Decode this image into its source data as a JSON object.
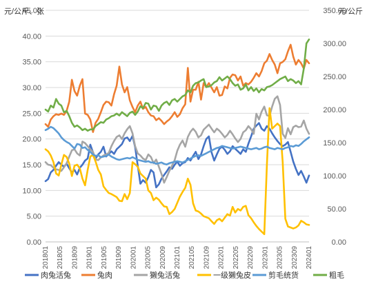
{
  "chart_data": {
    "type": "line",
    "title": "",
    "left_unit": "元/公斤、张",
    "right_unit": "元/公斤",
    "y_left": {
      "min": 0,
      "max": 45,
      "ticks": [
        "0.00",
        "5.00",
        "10.00",
        "15.00",
        "20.00",
        "25.00",
        "30.00",
        "35.00",
        "40.00",
        "45.00"
      ]
    },
    "y_right": {
      "min": 0,
      "max": 350,
      "ticks": [
        "0.00",
        "50.00",
        "100.00",
        "150.00",
        "200.00",
        "250.00",
        "300.00",
        "350.00"
      ]
    },
    "x_range": [
      0,
      100
    ],
    "x_tick_labels": [
      "201801",
      "201805",
      "201809",
      "201901",
      "201905",
      "201909",
      "202001",
      "202005",
      "202009",
      "202101",
      "202105",
      "202109",
      "202201",
      "202205",
      "202209",
      "202301",
      "202305",
      "202309",
      "202401"
    ],
    "legend_position": "bottom",
    "grid": true,
    "series": [
      {
        "name": "肉兔活兔",
        "axis": "left",
        "color": "#4472C4",
        "values": [
          11.8,
          12.2,
          13.5,
          14.0,
          14.8,
          15.5,
          15.0,
          14.6,
          15.2,
          14.3,
          13.5,
          14.0,
          13.1,
          14.4,
          15.0,
          15.8,
          16.2,
          18.9,
          17.4,
          16.2,
          17.0,
          17.5,
          18.5,
          16.6,
          17.1,
          17.6,
          17.1,
          18.0,
          18.5,
          19.0,
          20.1,
          20.3,
          19.6,
          20.6,
          18.4,
          14.8,
          11.3,
          12.0,
          11.5,
          12.6,
          14.0,
          13.5,
          10.6,
          11.2,
          12.3,
          13.0,
          13.7,
          14.5,
          14.2,
          15.0,
          15.6,
          14.8,
          15.3,
          15.5,
          16.3,
          15.8,
          16.7,
          17.5,
          16.1,
          17.0,
          18.6,
          20.0,
          20.5,
          17.4,
          15.8,
          17.0,
          18.1,
          18.5,
          17.9,
          17.1,
          17.6,
          18.6,
          18.1,
          17.6,
          17.1,
          18.0,
          17.5,
          19.1,
          20.5,
          22.0,
          22.6,
          23.1,
          22.0,
          21.6,
          22.5,
          22.0,
          21.1,
          20.3,
          19.6,
          19.0,
          18.6,
          18.9,
          19.4,
          17.5,
          15.6,
          14.2,
          13.0,
          13.8,
          12.7,
          11.5,
          12.9
        ]
      },
      {
        "name": "兔肉",
        "axis": "right",
        "color": "#ED7D31",
        "values": [
          178,
          174,
          185,
          190,
          193,
          192,
          194,
          192,
          198,
          212,
          245,
          228,
          221,
          236,
          246,
          194,
          192,
          185,
          166,
          180,
          186,
          196,
          207,
          212,
          211,
          206,
          223,
          236,
          265,
          238,
          226,
          234,
          214,
          204,
          196,
          206,
          212,
          201,
          204,
          196,
          191,
          190,
          184,
          187,
          183,
          178,
          182,
          185,
          190,
          196,
          189,
          193,
          202,
          208,
          263,
          212,
          230,
          230,
          242,
          215,
          240,
          234,
          240,
          233,
          226,
          234,
          221,
          222,
          235,
          232,
          248,
          253,
          252,
          244,
          250,
          236,
          240,
          238,
          242,
          248,
          255,
          250,
          258,
          270,
          274,
          284,
          275,
          268,
          255,
          270,
          272,
          276,
          288,
          298,
          280,
          268,
          275,
          270,
          262,
          275,
          270
        ]
      },
      {
        "name": "獭兔活兔",
        "axis": "left",
        "color": "#A5A5A5",
        "values": [
          15.5,
          15.0,
          14.9,
          14.4,
          14.1,
          14.0,
          13.8,
          14.5,
          15.3,
          16.6,
          17.8,
          18.0,
          17.2,
          16.8,
          19.5,
          19.2,
          18.6,
          18.0,
          17.5,
          16.0,
          15.9,
          16.4,
          16.8,
          17.0,
          17.3,
          18.6,
          19.6,
          20.4,
          20.7,
          20.0,
          21.1,
          21.9,
          22.5,
          21.1,
          18.6,
          17.2,
          16.8,
          16.2,
          15.9,
          17.0,
          16.5,
          15.3,
          16.0,
          14.6,
          13.2,
          11.5,
          12.6,
          13.8,
          14.8,
          15.9,
          17.7,
          18.9,
          19.7,
          18.5,
          20.4,
          21.4,
          22.0,
          21.4,
          20.3,
          20.7,
          21.8,
          22.3,
          22.8,
          22.0,
          21.3,
          22.0,
          21.6,
          21.0,
          20.3,
          20.8,
          21.6,
          20.9,
          20.1,
          19.4,
          20.0,
          21.3,
          21.7,
          22.5,
          21.9,
          21.0,
          24.9,
          23.8,
          25.3,
          26.3,
          24.6,
          24.5,
          26.3,
          27.8,
          28.3,
          26.6,
          21.0,
          20.2,
          22.1,
          20.9,
          22.3,
          22.6,
          22.3,
          22.4,
          23.6,
          22.0,
          21.0
        ]
      },
      {
        "name": "一级獭兔皮",
        "axis": "left",
        "color": "#FFC000",
        "values": [
          18.0,
          17.6,
          16.8,
          15.5,
          13.3,
          12.9,
          15.0,
          16.9,
          16.5,
          15.2,
          12.8,
          14.8,
          15.0,
          14.3,
          12.3,
          11.0,
          14.0,
          16.6,
          16.9,
          15.6,
          14.0,
          13.1,
          10.8,
          10.1,
          9.5,
          9.3,
          9.0,
          8.7,
          8.0,
          7.9,
          9.3,
          8.3,
          9.5,
          15.5,
          15.1,
          14.6,
          13.3,
          12.8,
          12.3,
          10.0,
          9.5,
          8.1,
          8.6,
          8.2,
          7.5,
          6.9,
          6.8,
          5.4,
          5.8,
          6.4,
          7.6,
          8.8,
          9.7,
          10.5,
          12.3,
          11.1,
          7.5,
          6.1,
          5.9,
          5.5,
          5.0,
          4.8,
          4.6,
          4.0,
          3.5,
          4.2,
          4.5,
          4.0,
          4.7,
          5.4,
          5.1,
          6.8,
          5.7,
          6.4,
          6.1,
          6.8,
          7.0,
          5.2,
          4.6,
          3.8,
          3.1,
          2.5,
          2.0,
          1.5,
          15.0,
          26.0,
          22.0,
          22.5,
          23.0,
          22.5,
          15.5,
          4.5,
          3.0,
          2.8,
          2.6,
          2.8,
          3.2,
          4.1,
          3.8,
          3.4,
          3.3
        ]
      },
      {
        "name": "剪毛统货",
        "axis": "right",
        "color": "#5B9BD5",
        "values": [
          169,
          171,
          174,
          172,
          168,
          164,
          158,
          154,
          151,
          149,
          145,
          141,
          148,
          147,
          142,
          143,
          139,
          136,
          132,
          130,
          131,
          128,
          129,
          130,
          132,
          129,
          127,
          125,
          124,
          125,
          126,
          127,
          126,
          128,
          126,
          124,
          123,
          122,
          121,
          122,
          120,
          120,
          118,
          119,
          120,
          118,
          117,
          119,
          120,
          121,
          122,
          121,
          120,
          122,
          124,
          126,
          128,
          130,
          131,
          130,
          132,
          134,
          136,
          138,
          140,
          142,
          143,
          145,
          144,
          143,
          142,
          141,
          142,
          143,
          144,
          143,
          142,
          141,
          140,
          141,
          142,
          140,
          141,
          143,
          144,
          142,
          141,
          140,
          142,
          141,
          140,
          142,
          143,
          145,
          144,
          146,
          145,
          148,
          152,
          155,
          158
        ]
      },
      {
        "name": "粗毛",
        "axis": "right",
        "color": "#70AD47",
        "values": [
          200,
          197,
          206,
          203,
          216,
          209,
          206,
          196,
          198,
          190,
          180,
          174,
          176,
          173,
          169,
          171,
          168,
          170,
          170,
          175,
          178,
          181,
          180,
          185,
          187,
          190,
          191,
          194,
          191,
          196,
          193,
          190,
          195,
          197,
          192,
          197,
          205,
          202,
          210,
          209,
          200,
          206,
          205,
          198,
          206,
          210,
          212,
          207,
          214,
          216,
          212,
          216,
          220,
          222,
          229,
          226,
          236,
          240,
          241,
          244,
          246,
          234,
          235,
          237,
          241,
          243,
          249,
          244,
          247,
          250,
          246,
          240,
          236,
          238,
          230,
          232,
          238,
          229,
          234,
          228,
          232,
          226,
          231,
          229,
          234,
          235,
          237,
          240,
          243,
          246,
          248,
          250,
          243,
          246,
          244,
          240,
          243,
          238,
          262,
          300,
          306
        ]
      }
    ]
  }
}
